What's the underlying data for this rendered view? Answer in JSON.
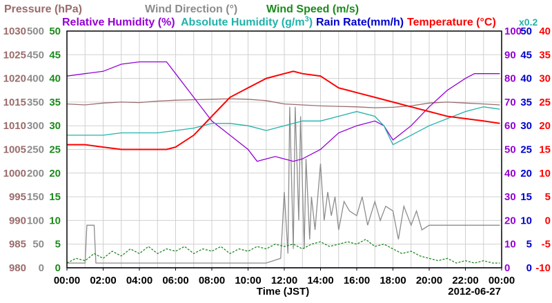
{
  "chart_data": {
    "type": "line",
    "date": "2012-06-27",
    "xlabel": "Time (JST)",
    "x_ticks": [
      "00:00",
      "02:00",
      "04:00",
      "06:00",
      "08:00",
      "10:00",
      "12:00",
      "14:00",
      "16:00",
      "18:00",
      "20:00",
      "22:00",
      "00:00"
    ],
    "xlim": [
      0,
      24
    ],
    "grid": true,
    "legend": [
      {
        "label": "Pressure (hPa)",
        "color": "#9b6b6b"
      },
      {
        "label": "Wind Direction (°)",
        "color": "#8c8c8c"
      },
      {
        "label": "Wind Speed (m/s)",
        "color": "#1a8a1a"
      },
      {
        "label": "Relative Humidity (%)",
        "color": "#9400d3"
      },
      {
        "label": "Absolute Humidity (g/m",
        "sup": "3",
        "close": ")",
        "color": "#20b2aa"
      },
      {
        "label": "Rain Rate(mm/h)",
        "color": "#0000cd"
      },
      {
        "label": "Temperature (°C)",
        "color": "#ff0000"
      },
      {
        "label": "x0.2",
        "color": "#20b2aa"
      }
    ],
    "axes": {
      "pressure": {
        "label": "Pressure (hPa)",
        "color": "#9b6b6b",
        "ticks": [
          "1030",
          "1025",
          "1020",
          "1015",
          "1010",
          "1005",
          "1000",
          "995",
          "990",
          "985",
          "980"
        ],
        "ylim": [
          980,
          1030
        ]
      },
      "wind_direction": {
        "label": "Wind Direction (°)",
        "color": "#8c8c8c",
        "ticks": [
          "500",
          "450",
          "400",
          "350",
          "300",
          "250",
          "200",
          "150",
          "100",
          "50",
          "0"
        ],
        "ylim": [
          0,
          500
        ]
      },
      "wind_speed": {
        "label": "Wind Speed (m/s)",
        "color": "#1a8a1a",
        "ticks": [
          "50",
          "45",
          "40",
          "35",
          "30",
          "25",
          "20",
          "15",
          "10",
          "5",
          "0"
        ],
        "ylim": [
          0,
          50
        ]
      },
      "relative_humidity": {
        "label": "Relative Humidity (%)",
        "color": "#9400d3",
        "ticks": [
          "100",
          "90",
          "80",
          "70",
          "60",
          "50",
          "40",
          "30",
          "20",
          "10",
          "0"
        ],
        "ylim": [
          0,
          100
        ]
      },
      "rain_rate": {
        "label": "Rain Rate(mm/h)",
        "color": "#0000cd",
        "ticks": [
          "50",
          "45",
          "40",
          "35",
          "30",
          "25",
          "20",
          "15",
          "10",
          "5",
          "0"
        ],
        "ylim": [
          0,
          50
        ]
      },
      "temperature": {
        "label": "Temperature (°C)",
        "color": "#ff0000",
        "ticks": [
          "40",
          "35",
          "30",
          "25",
          "20",
          "15",
          "10",
          "5",
          "0",
          "-5",
          "-10"
        ],
        "ylim": [
          -10,
          40
        ]
      }
    },
    "series": [
      {
        "name": "Pressure",
        "axis": "pressure",
        "color": "#9b6b6b",
        "x": [
          0,
          1,
          2,
          3,
          4,
          5,
          6,
          7,
          8,
          9,
          10,
          11,
          12,
          13,
          14,
          15,
          16,
          17,
          18,
          19,
          20,
          21,
          22,
          23,
          23.9
        ],
        "y": [
          1014.6,
          1014.4,
          1014.8,
          1015.0,
          1014.9,
          1015.2,
          1015.4,
          1015.5,
          1015.6,
          1015.7,
          1015.6,
          1015.3,
          1014.6,
          1014.4,
          1014.2,
          1014.1,
          1014.0,
          1013.8,
          1013.9,
          1014.2,
          1014.8,
          1015.0,
          1014.8,
          1014.6,
          1014.4
        ]
      },
      {
        "name": "Wind Direction",
        "axis": "wind_direction",
        "color": "#8c8c8c",
        "x": [
          0,
          0.5,
          1.0,
          1.1,
          1.5,
          1.6,
          2.0,
          3.0,
          4.0,
          5.0,
          6.0,
          7.0,
          8.0,
          9.0,
          10.0,
          11.0,
          11.8,
          12.0,
          12.2,
          12.3,
          12.5,
          12.6,
          12.8,
          12.9,
          13.1,
          13.2,
          13.4,
          13.5,
          13.7,
          14.0,
          14.2,
          14.4,
          14.6,
          14.8,
          15.0,
          15.3,
          15.6,
          16.0,
          16.3,
          16.6,
          17.0,
          17.3,
          17.6,
          18.0,
          18.3,
          18.6,
          19.0,
          19.3,
          19.6,
          20.0,
          21.0,
          22.0,
          23.0,
          23.9
        ],
        "y": [
          10,
          10,
          10,
          90,
          90,
          10,
          10,
          10,
          10,
          10,
          10,
          10,
          10,
          10,
          10,
          10,
          20,
          160,
          30,
          340,
          40,
          340,
          100,
          320,
          40,
          230,
          60,
          150,
          80,
          220,
          100,
          160,
          110,
          150,
          80,
          140,
          120,
          110,
          150,
          90,
          140,
          100,
          130,
          120,
          60,
          130,
          90,
          120,
          80,
          90,
          90,
          90,
          90,
          90
        ]
      },
      {
        "name": "Wind Speed",
        "axis": "wind_speed",
        "color": "#1a8a1a",
        "x": [
          0,
          0.5,
          1,
          1.5,
          2,
          2.5,
          3,
          3.5,
          4,
          4.5,
          5,
          5.5,
          6,
          6.5,
          7,
          7.5,
          8,
          8.5,
          9,
          9.5,
          10,
          10.5,
          11,
          11.5,
          12,
          12.5,
          13,
          13.5,
          14,
          14.5,
          15,
          15.5,
          16,
          16.5,
          17,
          17.5,
          18,
          18.5,
          19,
          19.5,
          20,
          20.5,
          21,
          21.5,
          22,
          22.5,
          23,
          23.5,
          23.9
        ],
        "y": [
          1,
          2,
          1.5,
          3,
          2,
          3.5,
          2.5,
          4,
          3,
          4.5,
          3,
          4,
          3.5,
          4.5,
          3,
          4,
          3.5,
          4.5,
          3,
          4,
          3.5,
          4.5,
          4,
          5,
          4.5,
          5,
          4,
          5,
          5.5,
          4.5,
          5,
          5.5,
          5,
          6,
          4.5,
          5,
          4,
          3,
          3.5,
          2.5,
          2,
          1.5,
          2,
          1,
          1.5,
          1,
          1.5,
          1,
          1
        ]
      },
      {
        "name": "Relative Humidity",
        "axis": "relative_humidity",
        "color": "#9400d3",
        "x": [
          0,
          1,
          2,
          3,
          4,
          4.5,
          5,
          5.5,
          6,
          7,
          8,
          9,
          10,
          10.5,
          11,
          11.5,
          12,
          12.5,
          13,
          14,
          15,
          16,
          17,
          17.5,
          18,
          19,
          20,
          21,
          22,
          22.5,
          23,
          23.5,
          23.9
        ],
        "y": [
          81,
          82,
          83,
          86,
          87,
          87,
          87,
          87,
          82,
          72,
          62,
          56,
          50,
          45,
          46,
          47,
          46,
          45,
          46,
          50,
          57,
          60,
          62,
          60,
          54,
          60,
          68,
          75,
          80,
          82,
          82,
          82,
          82
        ]
      },
      {
        "name": "Absolute Humidity",
        "axis": "relative_humidity",
        "color": "#20b2aa",
        "x": [
          0,
          1,
          2,
          3,
          4,
          5,
          6,
          7,
          8,
          9,
          10,
          11,
          12,
          13,
          14,
          15,
          16,
          17,
          17.5,
          18,
          19,
          20,
          21,
          22,
          23,
          23.9
        ],
        "y": [
          56,
          56,
          56,
          57,
          57,
          57,
          58,
          59,
          61,
          61,
          60,
          58,
          60,
          62,
          62,
          64,
          66,
          64,
          60,
          52,
          56,
          60,
          63,
          66,
          68,
          67
        ]
      },
      {
        "name": "Rain Rate",
        "axis": "rain_rate",
        "color": "#0000cd",
        "x": [
          0,
          23.9
        ],
        "y": [
          0,
          0
        ]
      },
      {
        "name": "Temperature",
        "axis": "temperature",
        "color": "#ff0000",
        "x": [
          0,
          1,
          2,
          3,
          4,
          5,
          5.5,
          6,
          7,
          8,
          9,
          10,
          11,
          12,
          12.5,
          13,
          14,
          15,
          16,
          17,
          18,
          19,
          20,
          21,
          22,
          23,
          23.9
        ],
        "y": [
          16,
          16,
          15.5,
          15,
          15,
          15,
          15,
          15.5,
          18,
          22,
          26,
          28,
          30,
          31,
          31.5,
          31,
          30.5,
          28,
          27,
          26,
          25,
          24,
          23,
          22,
          21.5,
          21,
          20.5
        ]
      }
    ]
  }
}
